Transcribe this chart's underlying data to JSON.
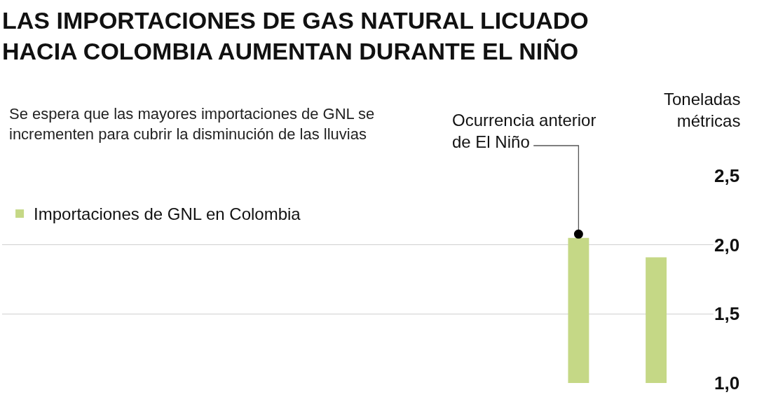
{
  "chart_data": {
    "type": "bar",
    "title": "LAS IMPORTACIONES DE GAS NATURAL LICUADO\nHACIA COLOMBIA AUMENTAN DURANTE EL NIÑO",
    "subtitle": "Se espera que las mayores importaciones de GNL se\nincrementen para cubrir la disminución de las lluvias",
    "ylabel": "Toneladas\nmétricas",
    "categories": [
      null,
      null
    ],
    "series": [
      {
        "name": "Importaciones de GNL en Colombia",
        "color": "#c5d886",
        "values": [
          2.05,
          1.91
        ]
      }
    ],
    "ylim": [
      1,
      2.5
    ],
    "yticks": [
      {
        "value": 1,
        "label": "1,0"
      },
      {
        "value": 1.5,
        "label": "1,5"
      },
      {
        "value": 2,
        "label": "2,0"
      },
      {
        "value": 2.5,
        "label": "2,5"
      }
    ],
    "grid": "y",
    "legend": "top left",
    "annotations": [
      "Ocurrencia anterior\nde El Niño"
    ]
  }
}
